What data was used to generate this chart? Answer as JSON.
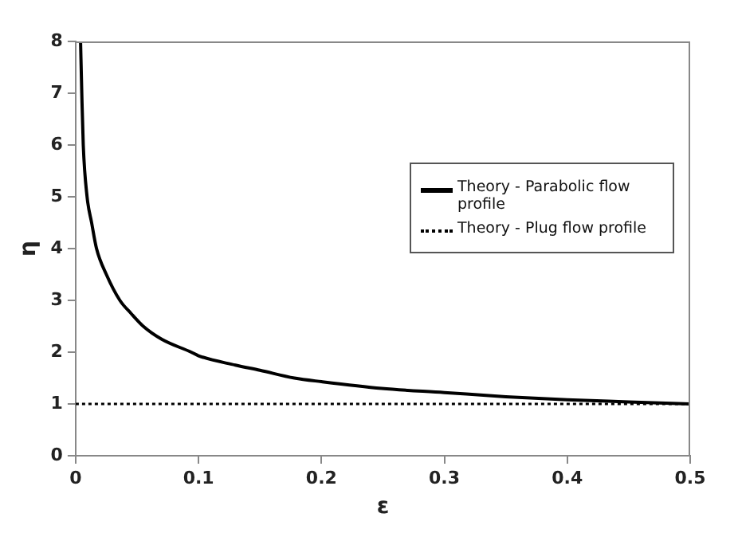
{
  "chart_data": {
    "type": "line",
    "xlabel": "ε",
    "ylabel": "η",
    "xlim": [
      0,
      0.5
    ],
    "xticks": [
      0,
      0.1,
      0.2,
      0.3,
      0.4,
      0.5
    ],
    "ylim": [
      0,
      8
    ],
    "yticks": [
      0,
      1,
      2,
      3,
      4,
      5,
      6,
      7,
      8
    ],
    "grid": false,
    "legend": "right",
    "marker": "none",
    "series": [
      {
        "name": "Theory - Parabolic flow profile",
        "color": "#000000",
        "line_style": "solid",
        "x": [
          0.004,
          0.005,
          0.0062,
          0.0093,
          0.013,
          0.017,
          0.025,
          0.036,
          0.045,
          0.055,
          0.07,
          0.094,
          0.1,
          0.13,
          0.15,
          0.178,
          0.2,
          0.249,
          0.3,
          0.35,
          0.4,
          0.45,
          0.5
        ],
        "values": [
          8,
          7,
          6,
          5,
          4.5,
          4,
          3.5,
          3,
          2.75,
          2.5,
          2.25,
          2,
          1.93,
          1.75,
          1.65,
          1.5,
          1.43,
          1.3,
          1.22,
          1.14,
          1.08,
          1.04,
          1.0
        ]
      },
      {
        "name": "Theory - Plug flow profile",
        "color": "#000000",
        "line_style": "dotted",
        "x": [
          0,
          0.5
        ],
        "values": [
          1,
          1
        ]
      }
    ]
  }
}
